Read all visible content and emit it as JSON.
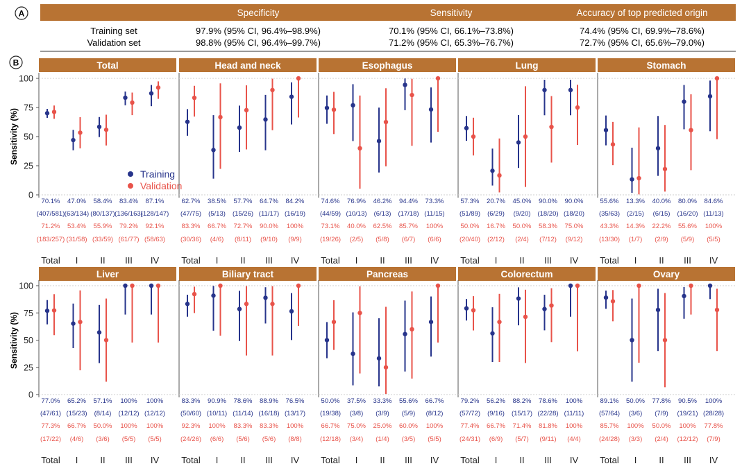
{
  "colors": {
    "training": "#27348b",
    "validation": "#e8534a",
    "header_bg": "#b87333",
    "header_text": "#ffffff",
    "grid": "#cfcfcf"
  },
  "panel_a": {
    "label": "A",
    "headers": [
      "Specificity",
      "Sensitivity",
      "Accuracy of top predicted origin"
    ],
    "rows": [
      {
        "name": "Training set",
        "values": [
          "97.9% (95% CI, 96.4%–98.9%)",
          "70.1% (95% CI, 66.1%–73.8%)",
          "74.4% (95% CI, 69.9%–78.6%)"
        ]
      },
      {
        "name": "Validation set",
        "values": [
          "98.8% (95% CI, 96.4%–99.7%)",
          "71.2% (95% CI, 65.3%–76.7%)",
          "72.7% (95% CI, 65.6%–79.0%)"
        ]
      }
    ]
  },
  "panel_b": {
    "label": "B",
    "legend": [
      "Training",
      "Validation"
    ]
  },
  "chart_data": {
    "type": "scatter",
    "subtype": "point-with-error-bars",
    "ylabel": "Sensitivity (%)",
    "ylim": [
      0,
      100
    ],
    "yticks": [
      0,
      25,
      50,
      75,
      100
    ],
    "reference_line": 100,
    "categories": [
      "Total",
      "I",
      "II",
      "III",
      "IV"
    ],
    "series_names": [
      "Training",
      "Validation"
    ],
    "panels": [
      {
        "title": "Total",
        "training": {
          "values": [
            70.1,
            47.0,
            58.4,
            83.4,
            87.1
          ],
          "lower": [
            66.1,
            38.3,
            49.6,
            76.9,
            76.1
          ],
          "upper": [
            73.8,
            55.8,
            66.8,
            88.7,
            94.3
          ],
          "pct_labels": [
            "70.1%",
            "47.0%",
            "58.4%",
            "83.4%",
            "87.1%"
          ],
          "count_labels": [
            "(407/581)",
            "(63/134)",
            "(80/137)",
            "(136/163)",
            "(128/147)"
          ]
        },
        "validation": {
          "values": [
            71.2,
            53.4,
            55.9,
            79.2,
            92.1
          ],
          "lower": [
            65.3,
            39.9,
            42.4,
            68.4,
            82.4
          ],
          "upper": [
            76.7,
            66.7,
            68.8,
            87.8,
            97.4
          ],
          "pct_labels": [
            "71.2%",
            "53.4%",
            "55.9%",
            "79.2%",
            "92.1%"
          ],
          "count_labels": [
            "(183/257)",
            "(31/58)",
            "(33/59)",
            "(61/77)",
            "(58/63)"
          ]
        }
      },
      {
        "title": "Head and neck",
        "training": {
          "values": [
            62.7,
            38.5,
            57.7,
            64.7,
            84.2
          ],
          "lower": [
            50.7,
            13.9,
            36.9,
            38.3,
            60.4
          ],
          "upper": [
            73.6,
            68.4,
            76.6,
            85.8,
            96.6
          ],
          "pct_labels": [
            "62.7%",
            "38.5%",
            "57.7%",
            "64.7%",
            "84.2%"
          ],
          "count_labels": [
            "(47/75)",
            "(5/13)",
            "(15/26)",
            "(11/17)",
            "(16/19)"
          ]
        },
        "validation": {
          "values": [
            83.3,
            66.7,
            72.7,
            90.0,
            100
          ],
          "lower": [
            67.2,
            22.3,
            39.0,
            55.5,
            66.4
          ],
          "upper": [
            93.6,
            95.7,
            94.0,
            99.7,
            100
          ],
          "pct_labels": [
            "83.3%",
            "66.7%",
            "72.7%",
            "90.0%",
            "100%"
          ],
          "count_labels": [
            "(30/36)",
            "(4/6)",
            "(8/11)",
            "(9/10)",
            "(9/9)"
          ]
        }
      },
      {
        "title": "Esophagus",
        "training": {
          "values": [
            74.6,
            76.9,
            46.2,
            94.4,
            73.3
          ],
          "lower": [
            61.0,
            46.2,
            19.2,
            72.7,
            44.9
          ],
          "upper": [
            85.3,
            95.0,
            74.9,
            99.9,
            92.2
          ],
          "pct_labels": [
            "74.6%",
            "76.9%",
            "46.2%",
            "94.4%",
            "73.3%"
          ],
          "count_labels": [
            "(44/59)",
            "(10/13)",
            "(6/13)",
            "(17/18)",
            "(11/15)"
          ]
        },
        "validation": {
          "values": [
            73.1,
            40.0,
            62.5,
            85.7,
            100
          ],
          "lower": [
            52.2,
            5.3,
            24.5,
            42.1,
            54.1
          ],
          "upper": [
            88.4,
            85.3,
            91.5,
            99.6,
            100
          ],
          "pct_labels": [
            "73.1%",
            "40.0%",
            "62.5%",
            "85.7%",
            "100%"
          ],
          "count_labels": [
            "(19/26)",
            "(2/5)",
            "(5/8)",
            "(6/7)",
            "(6/6)"
          ]
        }
      },
      {
        "title": "Lung",
        "training": {
          "values": [
            57.3,
            20.7,
            45.0,
            90.0,
            90.0
          ],
          "lower": [
            46.4,
            8.0,
            23.1,
            68.3,
            68.3
          ],
          "upper": [
            67.7,
            39.7,
            68.5,
            98.8,
            98.8
          ],
          "pct_labels": [
            "57.3%",
            "20.7%",
            "45.0%",
            "90.0%",
            "90.0%"
          ],
          "count_labels": [
            "(51/89)",
            "(6/29)",
            "(9/20)",
            "(18/20)",
            "(18/20)"
          ]
        },
        "validation": {
          "values": [
            50.0,
            16.7,
            50.0,
            58.3,
            75.0
          ],
          "lower": [
            33.8,
            2.1,
            6.8,
            27.7,
            42.8
          ],
          "upper": [
            66.2,
            48.4,
            93.2,
            84.8,
            94.5
          ],
          "pct_labels": [
            "50.0%",
            "16.7%",
            "50.0%",
            "58.3%",
            "75.0%"
          ],
          "count_labels": [
            "(20/40)",
            "(2/12)",
            "(2/4)",
            "(7/12)",
            "(9/12)"
          ]
        }
      },
      {
        "title": "Stomach",
        "training": {
          "values": [
            55.6,
            13.3,
            40.0,
            80.0,
            84.6
          ],
          "lower": [
            42.5,
            1.7,
            16.3,
            56.3,
            54.6
          ],
          "upper": [
            68.1,
            40.5,
            67.7,
            94.3,
            98.1
          ],
          "pct_labels": [
            "55.6%",
            "13.3%",
            "40.0%",
            "80.0%",
            "84.6%"
          ],
          "count_labels": [
            "(35/63)",
            "(2/15)",
            "(6/15)",
            "(16/20)",
            "(11/13)"
          ]
        },
        "validation": {
          "values": [
            43.3,
            14.3,
            22.2,
            55.6,
            100
          ],
          "lower": [
            25.5,
            0.4,
            2.8,
            21.2,
            47.8
          ],
          "upper": [
            62.6,
            57.9,
            60.0,
            86.3,
            100
          ],
          "pct_labels": [
            "43.3%",
            "14.3%",
            "22.2%",
            "55.6%",
            "100%"
          ],
          "count_labels": [
            "(13/30)",
            "(1/7)",
            "(2/9)",
            "(5/9)",
            "(5/5)"
          ]
        }
      },
      {
        "title": "Liver",
        "training": {
          "values": [
            77.0,
            65.2,
            57.1,
            100,
            100
          ],
          "lower": [
            64.5,
            42.7,
            28.9,
            73.5,
            73.5
          ],
          "upper": [
            86.8,
            83.6,
            82.3,
            100,
            100
          ],
          "pct_labels": [
            "77.0%",
            "65.2%",
            "57.1%",
            "100%",
            "100%"
          ],
          "count_labels": [
            "(47/61)",
            "(15/23)",
            "(8/14)",
            "(12/12)",
            "(12/12)"
          ]
        },
        "validation": {
          "values": [
            77.3,
            66.7,
            50.0,
            100,
            100
          ],
          "lower": [
            54.6,
            22.3,
            11.8,
            47.8,
            47.8
          ],
          "upper": [
            92.2,
            95.7,
            88.2,
            100,
            100
          ],
          "pct_labels": [
            "77.3%",
            "66.7%",
            "50.0%",
            "100%",
            "100%"
          ],
          "count_labels": [
            "(17/22)",
            "(4/6)",
            "(3/6)",
            "(5/5)",
            "(5/5)"
          ]
        }
      },
      {
        "title": "Biliary tract",
        "training": {
          "values": [
            83.3,
            90.9,
            78.6,
            88.9,
            76.5
          ],
          "lower": [
            71.5,
            58.7,
            49.2,
            65.3,
            50.1
          ],
          "upper": [
            91.7,
            99.8,
            95.3,
            98.6,
            93.2
          ],
          "pct_labels": [
            "83.3%",
            "90.9%",
            "78.6%",
            "88.9%",
            "76.5%"
          ],
          "count_labels": [
            "(50/60)",
            "(10/11)",
            "(11/14)",
            "(16/18)",
            "(13/17)"
          ]
        },
        "validation": {
          "values": [
            92.3,
            100,
            83.3,
            83.3,
            100
          ],
          "lower": [
            74.9,
            54.1,
            35.9,
            35.9,
            63.1
          ],
          "upper": [
            99.1,
            100,
            99.6,
            99.6,
            100
          ],
          "pct_labels": [
            "92.3%",
            "100%",
            "83.3%",
            "83.3%",
            "100%"
          ],
          "count_labels": [
            "(24/26)",
            "(6/6)",
            "(5/6)",
            "(5/6)",
            "(8/8)"
          ]
        }
      },
      {
        "title": "Pancreas",
        "training": {
          "values": [
            50.0,
            37.5,
            33.3,
            55.6,
            66.7
          ],
          "lower": [
            33.4,
            8.5,
            7.5,
            21.2,
            34.9
          ],
          "upper": [
            66.6,
            75.5,
            70.1,
            86.3,
            90.1
          ],
          "pct_labels": [
            "50.0%",
            "37.5%",
            "33.3%",
            "55.6%",
            "66.7%"
          ],
          "count_labels": [
            "(19/38)",
            "(3/8)",
            "(3/9)",
            "(5/9)",
            "(8/12)"
          ]
        },
        "validation": {
          "values": [
            66.7,
            75.0,
            25.0,
            60.0,
            100
          ],
          "lower": [
            41.0,
            19.4,
            0.6,
            14.7,
            47.8
          ],
          "upper": [
            86.7,
            99.4,
            80.6,
            94.7,
            100
          ],
          "pct_labels": [
            "66.7%",
            "75.0%",
            "25.0%",
            "60.0%",
            "100%"
          ],
          "count_labels": [
            "(12/18)",
            "(3/4)",
            "(1/4)",
            "(3/5)",
            "(5/5)"
          ]
        }
      },
      {
        "title": "Colorectum",
        "training": {
          "values": [
            79.2,
            56.2,
            88.2,
            78.6,
            100
          ],
          "lower": [
            68.0,
            29.9,
            63.6,
            59.0,
            71.5
          ],
          "upper": [
            87.8,
            80.2,
            98.5,
            91.7,
            100
          ],
          "pct_labels": [
            "79.2%",
            "56.2%",
            "88.2%",
            "78.6%",
            "100%"
          ],
          "count_labels": [
            "(57/72)",
            "(9/16)",
            "(15/17)",
            "(22/28)",
            "(11/11)"
          ]
        },
        "validation": {
          "values": [
            77.4,
            66.7,
            71.4,
            81.8,
            100
          ],
          "lower": [
            58.9,
            29.9,
            29.0,
            48.2,
            39.8
          ],
          "upper": [
            90.4,
            92.5,
            96.3,
            97.7,
            100
          ],
          "pct_labels": [
            "77.4%",
            "66.7%",
            "71.4%",
            "81.8%",
            "100%"
          ],
          "count_labels": [
            "(24/31)",
            "(6/9)",
            "(5/7)",
            "(9/11)",
            "(4/4)"
          ]
        }
      },
      {
        "title": "Ovary",
        "training": {
          "values": [
            89.1,
            50.0,
            77.8,
            90.5,
            100
          ],
          "lower": [
            78.8,
            11.8,
            40.0,
            69.6,
            87.7
          ],
          "upper": [
            95.5,
            88.2,
            97.2,
            98.8,
            100
          ],
          "pct_labels": [
            "89.1%",
            "50.0%",
            "77.8%",
            "90.5%",
            "100%"
          ],
          "count_labels": [
            "(57/64)",
            "(3/6)",
            "(7/9)",
            "(19/21)",
            "(28/28)"
          ]
        },
        "validation": {
          "values": [
            85.7,
            100,
            50.0,
            100,
            77.8
          ],
          "lower": [
            67.3,
            29.2,
            6.8,
            73.5,
            40.0
          ],
          "upper": [
            96.0,
            100,
            93.2,
            100,
            97.2
          ],
          "pct_labels": [
            "85.7%",
            "100%",
            "50.0%",
            "100%",
            "77.8%"
          ],
          "count_labels": [
            "(24/28)",
            "(3/3)",
            "(2/4)",
            "(12/12)",
            "(7/9)"
          ]
        }
      }
    ]
  }
}
